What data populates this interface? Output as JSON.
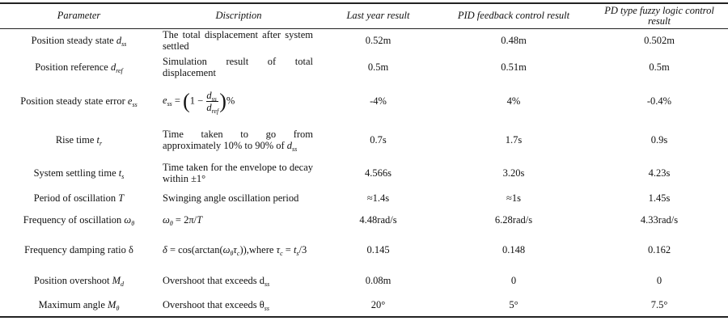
{
  "table": {
    "header": [
      "Parameter",
      "Discription",
      "Last year result",
      "PID feedback control result",
      "PD type fuzzy logic control result"
    ],
    "rows": [
      [
        [
          "Position steady state ",
          {
            "i": "d",
            "sub": "ss"
          }
        ],
        [
          "The total displacement after system settled"
        ],
        "0.52m",
        "0.48m",
        "0.502m"
      ],
      [
        [
          "Position reference ",
          {
            "i": "d",
            "sub": "ref"
          }
        ],
        [
          "Simulation result of total displacement"
        ],
        "0.5m",
        "0.51m",
        "0.5m"
      ],
      [
        [
          "Position steady state error ",
          {
            "i": "e",
            "sub": "ss"
          }
        ],
        [
          {
            "i": "e",
            "sub": "ss"
          },
          " = ",
          {
            "paren": "("
          },
          "1 − ",
          {
            "frac": [
              {
                "i": "d",
                "sub": "ss"
              },
              {
                "i": "d",
                "sub": "ref"
              }
            ]
          },
          {
            "paren": ")"
          },
          "%"
        ],
        "-4%",
        "4%",
        "-0.4%"
      ],
      [
        [
          "Rise time ",
          {
            "i": "t",
            "sub": "r"
          }
        ],
        [
          "Time taken to go from approximately 10% to 90% of ",
          {
            "i": "d",
            "sub": "ss"
          }
        ],
        "0.7s",
        "1.7s",
        "0.9s"
      ],
      [
        [
          "System settling time ",
          {
            "i": "t",
            "sub": "s"
          }
        ],
        [
          "Time taken for the envelope to decay within ±1°"
        ],
        "4.566s",
        "3.20s",
        "4.23s"
      ],
      [
        [
          "Period of oscillation ",
          {
            "i": "T"
          }
        ],
        [
          "Swinging angle oscillation period"
        ],
        "≈1.4s",
        "≈1s",
        "1.45s"
      ],
      [
        [
          "Frequency of oscillation ",
          {
            "i": "ω",
            "sub": "θ"
          }
        ],
        [
          {
            "i": "ω",
            "sub": "θ"
          },
          " = 2π/",
          {
            "i": "T"
          }
        ],
        "4.48rad/s",
        "6.28rad/s",
        "4.33rad/s"
      ],
      [
        [
          "Frequency damping ratio δ"
        ],
        [
          {
            "i": "δ"
          },
          " = cos(arctan(",
          {
            "i": "ω",
            "sub": "θ"
          },
          {
            "i": "τ",
            "sub": "c"
          },
          ")),where ",
          {
            "i": "τ",
            "sub": "c"
          },
          " = ",
          {
            "i": "t",
            "sub": "s"
          },
          "/3"
        ],
        "0.145",
        "0.148",
        "0.162"
      ],
      [
        [
          "Position overshoot ",
          {
            "i": "M",
            "sub": "d"
          }
        ],
        [
          "Overshoot that exceeds ",
          {
            "t": "d",
            "sub": "ss"
          }
        ],
        "0.08m",
        "0",
        "0"
      ],
      [
        [
          "Maximum angle ",
          {
            "i": "M",
            "sub": "θ"
          }
        ],
        [
          "Overshoot that exceeds ",
          {
            "t": "θ",
            "sub": "ss"
          }
        ],
        "20°",
        "5°",
        "7.5°"
      ]
    ]
  }
}
